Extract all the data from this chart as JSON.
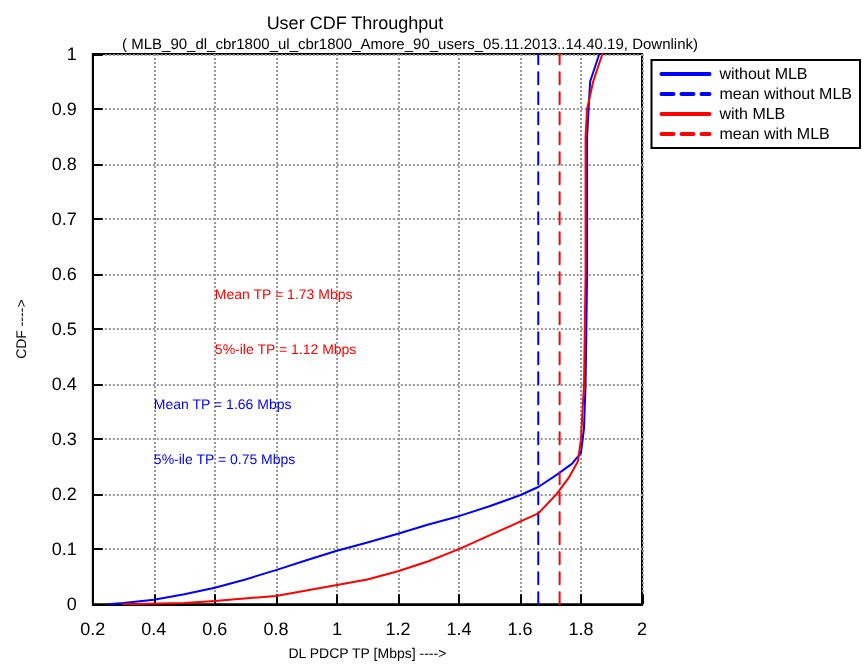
{
  "chart_data": {
    "type": "line",
    "title": "User CDF Throughput",
    "subtitle": "( MLB_90_dl_cbr1800_ul_cbr1800_Amore_90_users_05.11.2013..14.40.19, Downlink)",
    "xlabel": "DL PDCP TP [Mbps] ---->",
    "ylabel": "CDF ---->",
    "series": [
      {
        "name": "without MLB",
        "color": "#0000ff",
        "line_style": "solid",
        "x": [
          0.25,
          0.3,
          0.4,
          0.5,
          0.6,
          0.7,
          0.8,
          0.9,
          1.0,
          1.1,
          1.2,
          1.3,
          1.4,
          1.5,
          1.6,
          1.66,
          1.72,
          1.77,
          1.8,
          1.81,
          1.815,
          1.82,
          1.82,
          1.825,
          1.83,
          1.86
        ],
        "values": [
          0,
          0.002,
          0.008,
          0.018,
          0.03,
          0.045,
          0.062,
          0.08,
          0.097,
          0.112,
          0.128,
          0.145,
          0.16,
          0.178,
          0.198,
          0.213,
          0.235,
          0.255,
          0.275,
          0.32,
          0.4,
          0.6,
          0.85,
          0.9,
          0.95,
          1.0
        ]
      },
      {
        "name": "mean without MLB",
        "color": "#0000ff",
        "line_style": "dashed",
        "x": [
          1.66,
          1.66
        ],
        "values": [
          0,
          1
        ]
      },
      {
        "name": "with MLB",
        "color": "#ff0000",
        "line_style": "solid",
        "x": [
          0.3,
          0.5,
          0.6,
          0.8,
          1.0,
          1.1,
          1.2,
          1.3,
          1.4,
          1.5,
          1.6,
          1.66,
          1.72,
          1.76,
          1.79,
          1.8,
          1.81,
          1.815,
          1.815,
          1.82,
          1.84,
          1.87
        ],
        "values": [
          0,
          0.002,
          0.006,
          0.015,
          0.035,
          0.045,
          0.06,
          0.078,
          0.1,
          0.125,
          0.15,
          0.165,
          0.2,
          0.23,
          0.26,
          0.3,
          0.4,
          0.6,
          0.85,
          0.9,
          0.95,
          1.0
        ]
      },
      {
        "name": "mean with MLB",
        "color": "#ff0000",
        "line_style": "dashed",
        "x": [
          1.73,
          1.73
        ],
        "values": [
          0,
          1
        ]
      }
    ],
    "annotations": [
      "Mean TP = 1.73 Mbps",
      "5%-ile TP = 1.12 Mbps",
      "Mean TP = 1.66 Mbps",
      "5%-ile TP = 0.75 Mbps"
    ],
    "xlim": [
      0.2,
      2
    ],
    "xticks": [
      0.2,
      0.4,
      0.6,
      0.8,
      1,
      1.2,
      1.4,
      1.6,
      1.8,
      2
    ],
    "ylim": [
      0,
      1
    ],
    "yticks": [
      0,
      0.1,
      0.2,
      0.3,
      0.4,
      0.5,
      0.6,
      0.7,
      0.8,
      0.9,
      1
    ],
    "grid": true,
    "legend": "top right",
    "marker": "none"
  }
}
